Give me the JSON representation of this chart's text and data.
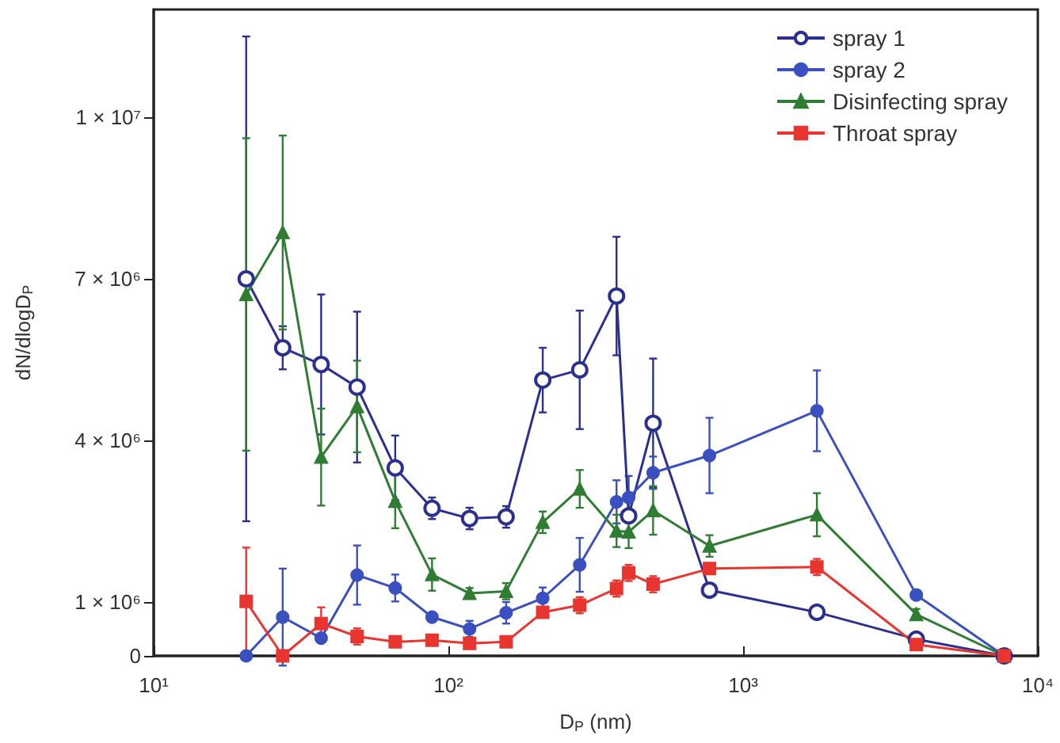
{
  "chart_data": {
    "type": "line",
    "xlabel": "D$_{P}$ (nm)",
    "ylabel": "dN/dlogD$_{P}$",
    "log": "x",
    "x": [
      20.6,
      27.4,
      37,
      49,
      66,
      88,
      118,
      157,
      209,
      279,
      372,
      409,
      495,
      769,
      1780,
      3870,
      7690
    ],
    "xlim": [
      10,
      10000
    ],
    "xticks": [
      {
        "value": 10,
        "label": "10¹"
      },
      {
        "value": 100,
        "label": "10²"
      },
      {
        "value": 1000,
        "label": "10³"
      },
      {
        "value": 10000,
        "label": "10⁴"
      }
    ],
    "ylim": [
      0,
      12000000
    ],
    "yticks": [
      {
        "value": 0,
        "label": "0"
      },
      {
        "value": 1000000,
        "label": "1 × 10⁶"
      },
      {
        "value": 4000000,
        "label": "4 × 10⁶"
      },
      {
        "value": 7000000,
        "label": "7 × 10⁶"
      },
      {
        "value": 10000000,
        "label": "1 × 10⁷"
      }
    ],
    "grid": false,
    "legend": "top right",
    "line_style": "solid",
    "series": [
      {
        "name": "spray 1",
        "color": "#2b2f8f",
        "marker": "circle_open",
        "values": [
          7000000,
          5720000,
          5410000,
          4990000,
          3490000,
          2740000,
          2550000,
          2580000,
          5120000,
          5310000,
          6680000,
          2600000,
          4320000,
          1220000,
          810000,
          310000,
          0
        ],
        "errors": [
          4500000,
          400000,
          1300000,
          1400000,
          600000,
          200000,
          200000,
          200000,
          600000,
          1100000,
          1100000,
          null,
          1200000,
          null,
          null,
          null,
          null
        ]
      },
      {
        "name": "spray 2",
        "color": "#3a4fc0",
        "marker": "circle",
        "values": [
          0,
          720000,
          330000,
          1500000,
          1260000,
          720000,
          500000,
          800000,
          1070000,
          1690000,
          2860000,
          2940000,
          3400000,
          3720000,
          4550000,
          1130000,
          0
        ],
        "errors": [
          null,
          900000,
          null,
          550000,
          250000,
          null,
          150000,
          200000,
          200000,
          500000,
          400000,
          400000,
          300000,
          700000,
          750000,
          null,
          null
        ]
      },
      {
        "name": "Disinfecting spray",
        "color": "#2e7d32",
        "marker": "triangle",
        "values": [
          6710000,
          7860000,
          3690000,
          4630000,
          2870000,
          1510000,
          1160000,
          1200000,
          2480000,
          3100000,
          2320000,
          2300000,
          2700000,
          2040000,
          2620000,
          770000,
          0
        ],
        "errors": [
          2900000,
          1800000,
          900000,
          850000,
          500000,
          300000,
          100000,
          150000,
          200000,
          350000,
          300000,
          300000,
          450000,
          200000,
          400000,
          100000,
          null
        ]
      },
      {
        "name": "Throat spray",
        "color": "#e8352f",
        "marker": "square",
        "values": [
          1010000,
          0,
          600000,
          360000,
          260000,
          290000,
          230000,
          260000,
          810000,
          940000,
          1250000,
          1540000,
          1330000,
          1620000,
          1650000,
          210000,
          0
        ],
        "errors": [
          1000000,
          null,
          300000,
          150000,
          null,
          null,
          null,
          null,
          null,
          150000,
          150000,
          150000,
          150000,
          100000,
          150000,
          null,
          null
        ]
      }
    ]
  }
}
